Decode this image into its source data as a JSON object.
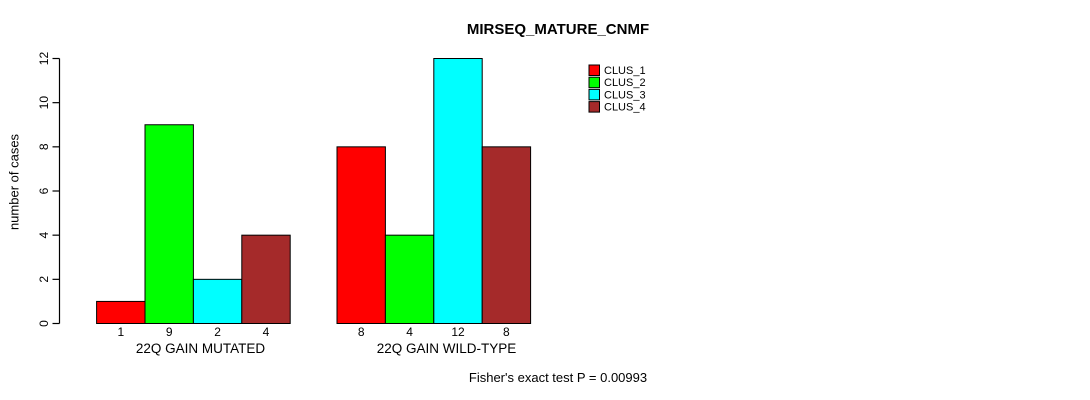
{
  "title": "MIRSEQ_MATURE_CNMF",
  "y_axis_label": "number of cases",
  "footnote": "Fisher's exact test P = 0.00993",
  "chart_data": {
    "type": "bar",
    "title": "MIRSEQ_MATURE_CNMF",
    "xlabel": "",
    "ylabel": "number of cases",
    "ylim": [
      0,
      12
    ],
    "yticks": [
      0,
      2,
      4,
      6,
      8,
      10,
      12
    ],
    "grid": false,
    "legend_position": "top-right",
    "background": "#ffffff",
    "categories": [
      "22Q GAIN MUTATED",
      "22Q GAIN WILD-TYPE"
    ],
    "series": [
      {
        "name": "CLUS_1",
        "color": "#FF0000",
        "values": [
          1,
          8
        ]
      },
      {
        "name": "CLUS_2",
        "color": "#00FF00",
        "values": [
          9,
          4
        ]
      },
      {
        "name": "CLUS_3",
        "color": "#00FFFF",
        "values": [
          2,
          12
        ]
      },
      {
        "name": "CLUS_4",
        "color": "#A52A2A",
        "values": [
          4,
          8
        ]
      }
    ],
    "bar_value_labels": {
      "22Q GAIN MUTATED": [
        1,
        9,
        2,
        4
      ],
      "22Q GAIN WILD-TYPE": [
        8,
        4,
        12,
        8
      ]
    },
    "annotation": "Fisher's exact test P = 0.00993"
  }
}
